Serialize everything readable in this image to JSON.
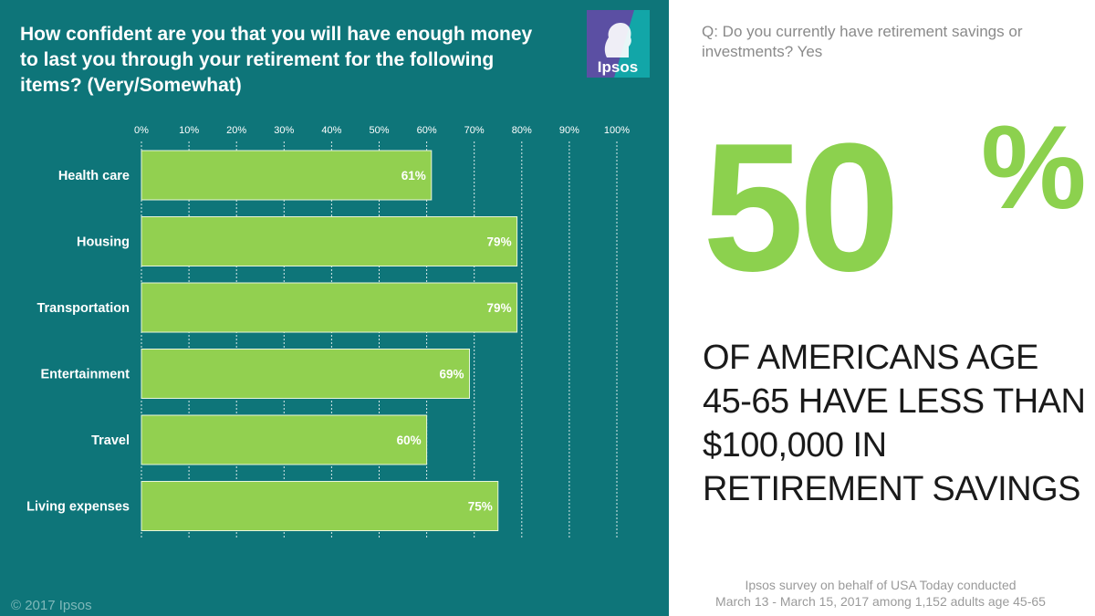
{
  "chart_data": {
    "type": "bar",
    "orientation": "horizontal",
    "title": "How confident are you that you will have enough money to last you through your retirement for the following items? (Very/Somewhat)",
    "categories": [
      "Health care",
      "Housing",
      "Transportation",
      "Entertainment",
      "Travel",
      "Living expenses"
    ],
    "values": [
      61,
      79,
      79,
      69,
      60,
      75
    ],
    "data_labels": [
      "61%",
      "79%",
      "79%",
      "69%",
      "60%",
      "75%"
    ],
    "x_ticks": [
      "0%",
      "10%",
      "20%",
      "30%",
      "40%",
      "50%",
      "60%",
      "70%",
      "80%",
      "90%",
      "100%"
    ],
    "xlim": [
      0,
      100
    ],
    "xlabel": "",
    "ylabel": "",
    "grid": true,
    "legend": "none",
    "bar_color": "#92d050",
    "background_color": "#0e7579"
  },
  "logo": {
    "text": "Ipsos",
    "colors": [
      "#5b4fa3",
      "#12a6a8"
    ]
  },
  "copyright": "© 2017 Ipsos",
  "question": "Q: Do you currently have retirement savings or investments? Yes",
  "stat": {
    "number": "50",
    "percent_sign": "%",
    "color": "#8cd14e"
  },
  "statement": "OF AMERICANS AGE 45-65 HAVE LESS THAN $100,000 IN RETIREMENT SAVINGS",
  "source": {
    "line1": "Ipsos survey on behalf of USA Today conducted",
    "line2": "March 13 - March 15, 2017 among 1,152 adults age 45-65"
  }
}
